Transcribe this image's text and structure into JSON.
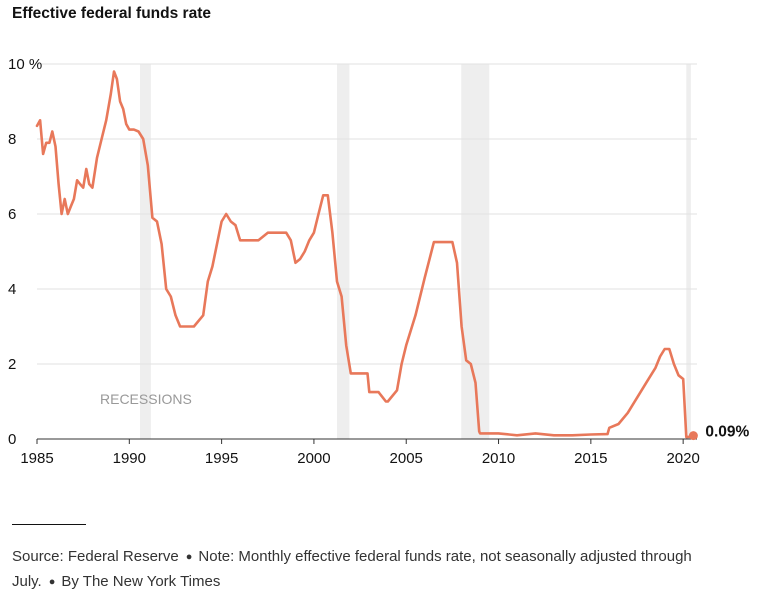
{
  "title": "Effective federal funds rate",
  "chart_data": {
    "type": "line",
    "title": "Effective federal funds rate",
    "xlabel": "",
    "ylabel": "",
    "xlim": [
      1985,
      2020.75
    ],
    "ylim": [
      0,
      10
    ],
    "x_ticks": [
      1985,
      1990,
      1995,
      2000,
      2005,
      2010,
      2015,
      2020
    ],
    "x_tick_labels": [
      "1985",
      "1990",
      "1995",
      "2000",
      "2005",
      "2010",
      "2015",
      "2020"
    ],
    "y_ticks": [
      0,
      2,
      4,
      6,
      8,
      10
    ],
    "y_tick_labels": [
      "0",
      "2",
      "4",
      "6",
      "8",
      "10 %"
    ],
    "grid": "horizontal",
    "line_color": "#e8785a",
    "recession_color": "#eeeeee",
    "recession_label": "RECESSIONS",
    "recessions": [
      [
        1990.58,
        1991.17
      ],
      [
        2001.25,
        2001.92
      ],
      [
        2007.98,
        2009.5
      ],
      [
        2020.17,
        2020.42
      ]
    ],
    "end_label": "0.09%",
    "end_value": 0.09,
    "x": [
      1985.0,
      1985.17,
      1985.33,
      1985.5,
      1985.67,
      1985.83,
      1986.0,
      1986.17,
      1986.33,
      1986.5,
      1986.67,
      1986.83,
      1987.0,
      1987.17,
      1987.33,
      1987.5,
      1987.67,
      1987.83,
      1988.0,
      1988.25,
      1988.5,
      1988.75,
      1989.0,
      1989.17,
      1989.33,
      1989.5,
      1989.67,
      1989.83,
      1990.0,
      1990.25,
      1990.5,
      1990.75,
      1991.0,
      1991.25,
      1991.5,
      1991.75,
      1992.0,
      1992.25,
      1992.5,
      1992.75,
      1993.0,
      1993.5,
      1994.0,
      1994.25,
      1994.5,
      1994.75,
      1995.0,
      1995.25,
      1995.5,
      1995.75,
      1996.0,
      1996.5,
      1997.0,
      1997.5,
      1998.0,
      1998.5,
      1998.75,
      1999.0,
      1999.25,
      1999.5,
      1999.75,
      2000.0,
      2000.25,
      2000.5,
      2000.75,
      2001.0,
      2001.25,
      2001.5,
      2001.75,
      2002.0,
      2002.5,
      2002.9,
      2003.0,
      2003.5,
      2003.9,
      2004.0,
      2004.5,
      2004.75,
      2005.0,
      2005.5,
      2006.0,
      2006.5,
      2007.0,
      2007.5,
      2007.75,
      2008.0,
      2008.25,
      2008.5,
      2008.75,
      2008.95,
      2009.0,
      2010.0,
      2011.0,
      2012.0,
      2013.0,
      2014.0,
      2015.0,
      2015.9,
      2016.0,
      2016.5,
      2017.0,
      2017.5,
      2018.0,
      2018.5,
      2018.75,
      2019.0,
      2019.25,
      2019.5,
      2019.75,
      2020.0,
      2020.17,
      2020.33,
      2020.5
    ],
    "values": [
      8.35,
      8.5,
      7.6,
      7.9,
      7.9,
      8.2,
      7.8,
      6.8,
      6.0,
      6.4,
      6.0,
      6.2,
      6.4,
      6.9,
      6.8,
      6.7,
      7.2,
      6.8,
      6.7,
      7.5,
      8.0,
      8.5,
      9.2,
      9.8,
      9.6,
      9.0,
      8.8,
      8.4,
      8.25,
      8.25,
      8.2,
      8.0,
      7.3,
      5.9,
      5.8,
      5.2,
      4.0,
      3.8,
      3.3,
      3.0,
      3.0,
      3.0,
      3.3,
      4.2,
      4.6,
      5.2,
      5.8,
      6.0,
      5.8,
      5.7,
      5.3,
      5.3,
      5.3,
      5.5,
      5.5,
      5.5,
      5.3,
      4.7,
      4.8,
      5.0,
      5.3,
      5.5,
      6.0,
      6.5,
      6.5,
      5.5,
      4.2,
      3.8,
      2.5,
      1.75,
      1.75,
      1.75,
      1.25,
      1.25,
      1.0,
      1.0,
      1.3,
      2.0,
      2.5,
      3.3,
      4.3,
      5.25,
      5.25,
      5.25,
      4.7,
      3.0,
      2.1,
      2.0,
      1.5,
      0.2,
      0.15,
      0.15,
      0.1,
      0.15,
      0.1,
      0.1,
      0.12,
      0.13,
      0.3,
      0.4,
      0.7,
      1.1,
      1.5,
      1.9,
      2.2,
      2.4,
      2.4,
      2.0,
      1.7,
      1.6,
      0.05,
      0.06,
      0.09
    ]
  },
  "footer": {
    "source": "Source: Federal Reserve",
    "note": "Note: Monthly effective federal funds rate, not seasonally adjusted through July.",
    "credit": "By The New York Times"
  }
}
